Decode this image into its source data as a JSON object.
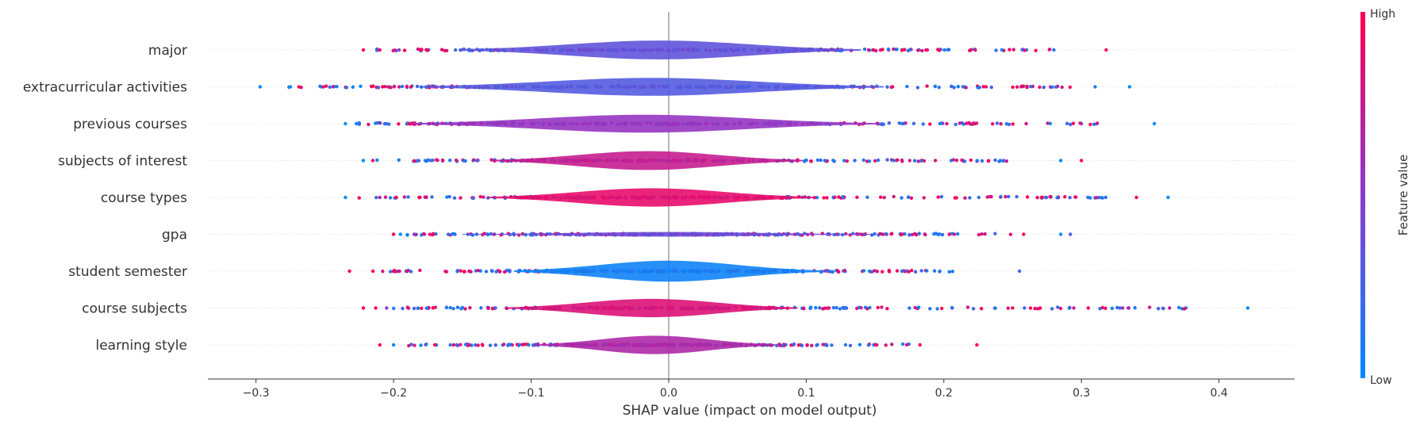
{
  "chart_data": {
    "type": "scatter",
    "subtype": "shap-violin-summary",
    "xlabel": "SHAP value (impact on model output)",
    "xlim": [
      -0.335,
      0.455
    ],
    "xticks": [
      "−0.3",
      "−0.2",
      "−0.1",
      "0.0",
      "0.1",
      "0.2",
      "0.3",
      "0.4"
    ],
    "xtick_values": [
      -0.3,
      -0.2,
      -0.1,
      0.0,
      0.1,
      0.2,
      0.3,
      0.4
    ],
    "colorbar": {
      "title": "Feature value",
      "high_label": "High",
      "low_label": "Low",
      "high_color": "#ff0052",
      "low_color": "#008bfb"
    },
    "features": [
      {
        "name": "major",
        "min": -0.222,
        "max": 0.318,
        "q1": -0.065,
        "q3": 0.052,
        "peak_width": 0.62,
        "core_value": 0.35,
        "outliers": [
          [
            -0.222,
            1
          ],
          [
            -0.21,
            1
          ],
          [
            -0.196,
            0.5
          ],
          [
            -0.155,
            0.2
          ],
          [
            0.28,
            0.1
          ],
          [
            0.318,
            1
          ]
        ]
      },
      {
        "name": "extracurricular activities",
        "min": -0.297,
        "max": 0.335,
        "q1": -0.08,
        "q3": 0.055,
        "peak_width": 0.58,
        "core_value": 0.3,
        "outliers": [
          [
            -0.297,
            0
          ],
          [
            -0.275,
            0
          ],
          [
            -0.244,
            0.7
          ],
          [
            -0.208,
            1
          ],
          [
            0.31,
            0.1
          ],
          [
            0.335,
            0
          ]
        ]
      },
      {
        "name": "previous courses",
        "min": -0.235,
        "max": 0.353,
        "q1": -0.085,
        "q3": 0.05,
        "peak_width": 0.58,
        "core_value": 0.55,
        "outliers": [
          [
            -0.235,
            0
          ],
          [
            -0.227,
            0
          ],
          [
            -0.188,
            1
          ],
          [
            0.3,
            0.6
          ],
          [
            0.353,
            0
          ]
        ]
      },
      {
        "name": "subjects of interest",
        "min": -0.222,
        "max": 0.3,
        "q1": -0.06,
        "q3": 0.03,
        "peak_width": 0.62,
        "core_value": 0.75,
        "outliers": [
          [
            -0.222,
            0
          ],
          [
            -0.215,
            1
          ],
          [
            0.285,
            0
          ],
          [
            0.3,
            1
          ]
        ]
      },
      {
        "name": "course types",
        "min": -0.235,
        "max": 0.363,
        "q1": -0.06,
        "q3": 0.035,
        "peak_width": 0.6,
        "core_value": 0.9,
        "outliers": [
          [
            -0.235,
            0
          ],
          [
            -0.21,
            0.7
          ],
          [
            -0.198,
            1
          ],
          [
            0.271,
            1
          ],
          [
            0.34,
            1
          ],
          [
            0.363,
            0
          ]
        ]
      },
      {
        "name": "gpa",
        "min": -0.2,
        "max": 0.292,
        "q1": -0.06,
        "q3": 0.06,
        "peak_width": 0.06,
        "core_value": 0.4,
        "outliers": [
          [
            -0.2,
            1
          ],
          [
            -0.195,
            0
          ],
          [
            -0.185,
            0.5
          ],
          [
            0.258,
            1
          ],
          [
            0.285,
            0
          ],
          [
            0.292,
            0.3
          ]
        ]
      },
      {
        "name": "student semester",
        "min": -0.232,
        "max": 0.255,
        "q1": -0.045,
        "q3": 0.045,
        "peak_width": 0.7,
        "core_value": 0.05,
        "outliers": [
          [
            -0.232,
            1
          ],
          [
            -0.215,
            1
          ],
          [
            -0.19,
            1
          ],
          [
            0.255,
            0.2
          ]
        ]
      },
      {
        "name": "course subjects",
        "min": -0.222,
        "max": 0.421,
        "q1": -0.055,
        "q3": 0.03,
        "peak_width": 0.6,
        "core_value": 0.85,
        "outliers": [
          [
            -0.222,
            1
          ],
          [
            -0.213,
            1
          ],
          [
            -0.205,
            0.5
          ],
          [
            0.27,
            1
          ],
          [
            0.33,
            0.6
          ],
          [
            0.334,
            0.6
          ],
          [
            0.421,
            0
          ]
        ]
      },
      {
        "name": "learning style",
        "min": -0.21,
        "max": 0.224,
        "q1": -0.045,
        "q3": 0.025,
        "peak_width": 0.6,
        "core_value": 0.65,
        "outliers": [
          [
            -0.21,
            1
          ],
          [
            -0.2,
            0
          ],
          [
            -0.17,
            1
          ],
          [
            0.224,
            1
          ]
        ]
      }
    ]
  }
}
